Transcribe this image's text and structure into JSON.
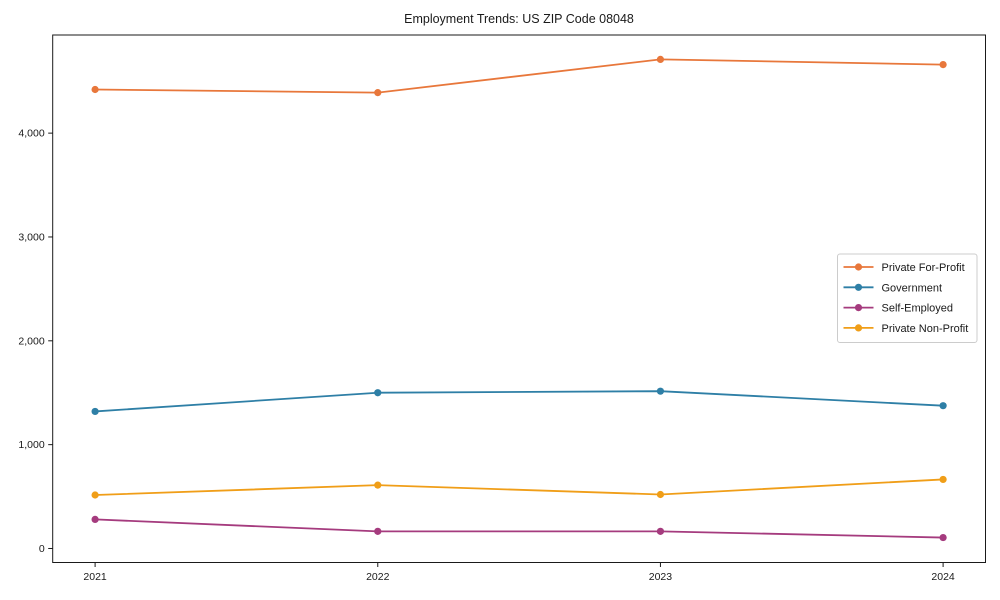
{
  "chart_data": {
    "type": "line",
    "title": "Employment Trends: US ZIP Code 08048",
    "x": [
      2021,
      2022,
      2023,
      2024
    ],
    "x_tick_labels": [
      "2021",
      "2022",
      "2023",
      "2024"
    ],
    "y_ticks": [
      0,
      1000,
      2000,
      3000,
      4000
    ],
    "y_tick_labels": [
      "0",
      "1,000",
      "2,000",
      "3,000",
      "4,000"
    ],
    "xlim": [
      2020.85,
      2024.15
    ],
    "ylim": [
      -135,
      4945
    ],
    "xlabel": "",
    "ylabel": "",
    "grid": false,
    "background": "#ffffff",
    "axis_color": "#1a1a1a",
    "text_color": "#1a1a1a",
    "legend": {
      "position": "middle-right",
      "background": "#ffffff",
      "border_color": "#cccccc"
    },
    "series": [
      {
        "name": "Private For-Profit",
        "color": "#E8773B",
        "values": [
          4420,
          4390,
          4710,
          4660
        ]
      },
      {
        "name": "Government",
        "color": "#2E7FA6",
        "values": [
          1320,
          1500,
          1515,
          1375
        ]
      },
      {
        "name": "Self-Employed",
        "color": "#A53B7E",
        "values": [
          280,
          165,
          165,
          105
        ]
      },
      {
        "name": "Private Non-Profit",
        "color": "#F09E18",
        "values": [
          515,
          610,
          520,
          665
        ]
      }
    ]
  }
}
